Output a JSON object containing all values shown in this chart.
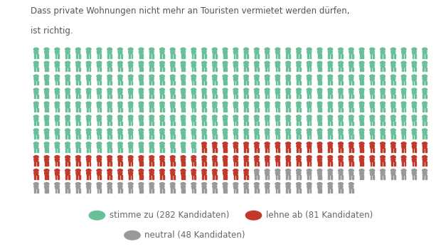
{
  "title_line1": "Dass private Wohnungen nicht mehr an Touristen vermietet werden dürfen,",
  "title_line2": "ist richtig.",
  "green_count": 282,
  "red_count": 81,
  "gray_count": 48,
  "green_color": "#6abf9b",
  "red_color": "#c0392b",
  "gray_color": "#999999",
  "legend_labels": [
    "stimme zu (282 Kandidaten)",
    "lehne ab (81 Kandidaten)",
    "neutral (48 Kandidaten)"
  ],
  "figures_per_row": 38,
  "bg_color": "#ffffff",
  "title_fontsize": 8.5,
  "legend_fontsize": 8.5,
  "title_color": "#555555",
  "legend_text_color": "#666666"
}
